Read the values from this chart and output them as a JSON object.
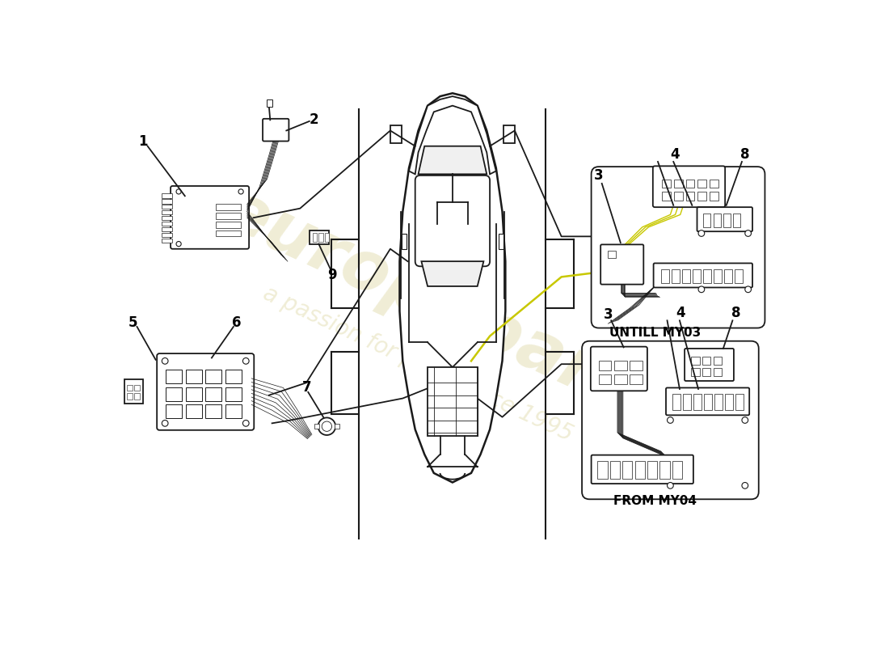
{
  "background_color": "#ffffff",
  "line_color": "#1a1a1a",
  "watermark_color": "#d4cc8a",
  "label_untill": "UNTILL MY03",
  "label_from": "FROM MY04",
  "yellow_wire_color": "#c8c800"
}
